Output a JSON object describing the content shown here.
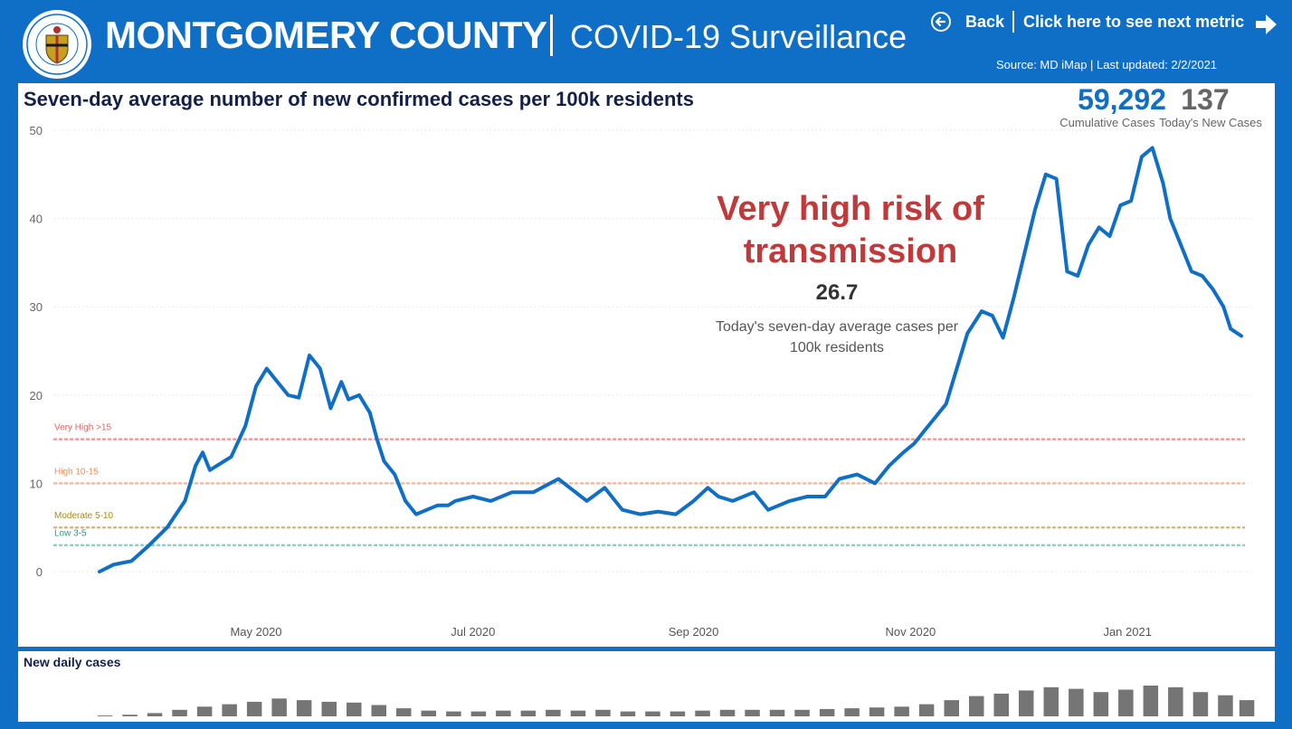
{
  "header": {
    "county": "MONTGOMERY COUNTY",
    "subtitle": "COVID-19 Surveillance",
    "back_label": "Back",
    "next_label": "Click here to see next metric",
    "source": "Source: MD iMap | Last updated:  2/2/2021"
  },
  "seal": {
    "text_top": "MONTGOMERY COUNTY",
    "text_bottom": "MARYLAND",
    "year_left": "1776",
    "year_right": "1776"
  },
  "main": {
    "title": "Seven-day average number of new confirmed cases per 100k residents",
    "kpis": [
      {
        "value": "59,292",
        "label": "Cumulative Cases"
      },
      {
        "value": "137",
        "label": "Today's New Cases"
      }
    ],
    "risk_text": "Very high risk of transmission",
    "current_value": "26.7",
    "current_label": "Today's seven-day average cases per 100k residents"
  },
  "colors": {
    "brand": "#0f6fc6",
    "line": "#0f6fc6",
    "risk_text": "#c0393b",
    "very_high": "#f29a9a",
    "high": "#f6b99c",
    "moderate": "#d6b87a",
    "low": "#8fcfc8"
  },
  "chart_data": [
    {
      "type": "line",
      "title": "Seven-day average number of new confirmed cases per 100k residents",
      "ylim": [
        0,
        50
      ],
      "yticks": [
        0,
        10,
        20,
        30,
        40,
        50
      ],
      "xticks": [
        {
          "date": "2020-05-01",
          "label": "May 2020"
        },
        {
          "date": "2020-07-01",
          "label": "Jul 2020"
        },
        {
          "date": "2020-09-01",
          "label": "Sep 2020"
        },
        {
          "date": "2020-11-01",
          "label": "Nov 2020"
        },
        {
          "date": "2021-01-01",
          "label": "Jan 2021"
        }
      ],
      "grid": true,
      "thresholds": [
        {
          "label": "Very High >15",
          "value": 15,
          "color": "#f29a9a",
          "label_color": "#e06666"
        },
        {
          "label": "High 10-15",
          "value": 10,
          "color": "#f6b99c",
          "label_color": "#f0905a"
        },
        {
          "label": "Moderate 5-10",
          "value": 5,
          "color": "#d6b87a",
          "label_color": "#a88a20"
        },
        {
          "label": "Low 3-5",
          "value": 3,
          "color": "#8fcfc8",
          "label_color": "#2a9a8a"
        }
      ],
      "series": [
        {
          "x": [
            "2020-03-18",
            "2020-03-22",
            "2020-03-27",
            "2020-04-01",
            "2020-04-06",
            "2020-04-11",
            "2020-04-14",
            "2020-04-16",
            "2020-04-18",
            "2020-04-20",
            "2020-04-24",
            "2020-04-28",
            "2020-05-01",
            "2020-05-04",
            "2020-05-06",
            "2020-05-08",
            "2020-05-10",
            "2020-05-13",
            "2020-05-16",
            "2020-05-19",
            "2020-05-22",
            "2020-05-25",
            "2020-05-27",
            "2020-05-30",
            "2020-06-02",
            "2020-06-04",
            "2020-06-06",
            "2020-06-09",
            "2020-06-12",
            "2020-06-15",
            "2020-06-18",
            "2020-06-21",
            "2020-06-24",
            "2020-06-26",
            "2020-07-01",
            "2020-07-06",
            "2020-07-12",
            "2020-07-18",
            "2020-07-25",
            "2020-08-02",
            "2020-08-07",
            "2020-08-12",
            "2020-08-17",
            "2020-08-22",
            "2020-08-27",
            "2020-09-01",
            "2020-09-05",
            "2020-09-08",
            "2020-09-12",
            "2020-09-18",
            "2020-09-22",
            "2020-09-28",
            "2020-10-03",
            "2020-10-08",
            "2020-10-12",
            "2020-10-17",
            "2020-10-22",
            "2020-10-26",
            "2020-10-30",
            "2020-11-02",
            "2020-11-05",
            "2020-11-08",
            "2020-11-11",
            "2020-11-14",
            "2020-11-17",
            "2020-11-21",
            "2020-11-24",
            "2020-11-27",
            "2020-11-30",
            "2020-12-03",
            "2020-12-06",
            "2020-12-09",
            "2020-12-12",
            "2020-12-15",
            "2020-12-18",
            "2020-12-21",
            "2020-12-24",
            "2020-12-27",
            "2020-12-30",
            "2021-01-02",
            "2021-01-05",
            "2021-01-08",
            "2021-01-11",
            "2021-01-13",
            "2021-01-16",
            "2021-01-19",
            "2021-01-22",
            "2021-01-25",
            "2021-01-28",
            "2021-01-30",
            "2021-02-02"
          ],
          "y": [
            0,
            0.8,
            1.2,
            3,
            5,
            8,
            12,
            13.5,
            11.5,
            12,
            13,
            16.5,
            21,
            23,
            22,
            21,
            20,
            19.7,
            24.5,
            23,
            18.5,
            21.5,
            19.5,
            20,
            18,
            15,
            12.5,
            11,
            8,
            6.5,
            7,
            7.5,
            7.5,
            8,
            8.5,
            8,
            9,
            9,
            10.5,
            8,
            9.5,
            7,
            6.5,
            6.8,
            6.5,
            8,
            9.5,
            8.5,
            8,
            9,
            7,
            8,
            8.5,
            8.5,
            10.5,
            11,
            10,
            12,
            13.5,
            14.5,
            16,
            17.5,
            19,
            23,
            27,
            29.5,
            29,
            26.5,
            31,
            36,
            41,
            45,
            44.5,
            34,
            33.5,
            37,
            39,
            38,
            41.5,
            42,
            47,
            48,
            44,
            40,
            37,
            34,
            33.5,
            32,
            30,
            27.5,
            26.7
          ]
        }
      ]
    },
    {
      "type": "bar",
      "title": "New daily cases",
      "categories": [
        "2020-03-18",
        "2020-03-25",
        "2020-04-01",
        "2020-04-08",
        "2020-04-15",
        "2020-04-22",
        "2020-04-29",
        "2020-05-06",
        "2020-05-13",
        "2020-05-20",
        "2020-05-27",
        "2020-06-03",
        "2020-06-10",
        "2020-06-17",
        "2020-06-24",
        "2020-07-01",
        "2020-07-08",
        "2020-07-15",
        "2020-07-22",
        "2020-07-29",
        "2020-08-05",
        "2020-08-12",
        "2020-08-19",
        "2020-08-26",
        "2020-09-02",
        "2020-09-09",
        "2020-09-16",
        "2020-09-23",
        "2020-09-30",
        "2020-10-07",
        "2020-10-14",
        "2020-10-21",
        "2020-10-28",
        "2020-11-04",
        "2020-11-11",
        "2020-11-18",
        "2020-11-25",
        "2020-12-02",
        "2020-12-09",
        "2020-12-16",
        "2020-12-23",
        "2020-12-30",
        "2021-01-06",
        "2021-01-13",
        "2021-01-20",
        "2021-01-27",
        "2021-02-02"
      ],
      "values": [
        1,
        2,
        4,
        8,
        12,
        15,
        18,
        22,
        20,
        18,
        17,
        14,
        10,
        7,
        6,
        6,
        7,
        7,
        8,
        7,
        8,
        6,
        6,
        6,
        7,
        8,
        8,
        8,
        8,
        9,
        10,
        11,
        12,
        15,
        20,
        25,
        28,
        32,
        36,
        34,
        30,
        33,
        38,
        36,
        30,
        26,
        20
      ]
    }
  ]
}
